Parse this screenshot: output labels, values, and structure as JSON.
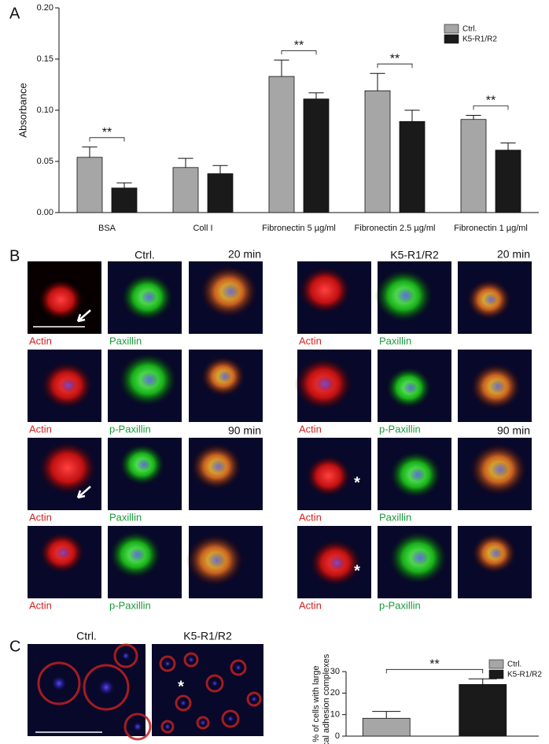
{
  "panel_a": {
    "label": "A"
  },
  "panel_b": {
    "label": "B",
    "groups": [
      {
        "title": "Ctrl.",
        "rows": [
          {
            "labels": [
              "Actin",
              "Paxillin"
            ],
            "time": "20 min"
          },
          {
            "labels": [
              "Actin",
              "p-Paxillin"
            ]
          },
          {
            "labels": [
              "Actin",
              "Paxillin"
            ],
            "time": "90 min"
          },
          {
            "labels": [
              "Actin",
              "p-Paxillin"
            ]
          }
        ]
      },
      {
        "title": "K5-R1/R2",
        "rows": [
          {
            "labels": [
              "Actin",
              "Paxillin"
            ],
            "time": "20 min"
          },
          {
            "labels": [
              "Actin",
              "p-Paxillin"
            ]
          },
          {
            "labels": [
              "Actin",
              "Paxillin"
            ],
            "time": "90 min",
            "mark": "*"
          },
          {
            "labels": [
              "Actin",
              "p-Paxillin"
            ],
            "mark": "*"
          }
        ]
      }
    ]
  },
  "panel_c": {
    "label": "C",
    "images": [
      {
        "title": "Ctrl."
      },
      {
        "title": "K5-R1/R2",
        "mark": "*"
      }
    ]
  },
  "chart_data": [
    {
      "type": "bar",
      "y_label": "Absorbance",
      "categories": [
        "BSA",
        "Coll I",
        "Fibronectin 5 µg/ml",
        "Fibronectin 2.5 µg/ml",
        "Fibronectin 1 µg/ml"
      ],
      "series": [
        {
          "name": "Ctrl.",
          "color": "#a6a6a6",
          "values": [
            0.054,
            0.044,
            0.133,
            0.119,
            0.091
          ],
          "errors": [
            0.01,
            0.009,
            0.016,
            0.017,
            0.004
          ]
        },
        {
          "name": "K5-R1/R2",
          "color": "#1a1a1a",
          "values": [
            0.024,
            0.038,
            0.111,
            0.089,
            0.061
          ],
          "errors": [
            0.005,
            0.008,
            0.006,
            0.011,
            0.007
          ]
        }
      ],
      "significance": [
        "**",
        null,
        "**",
        "**",
        "**"
      ],
      "ylim": [
        0,
        0.2
      ],
      "yticks": [
        {
          "value": 0,
          "label": "0.00"
        },
        {
          "value": 0.05,
          "label": "0.05"
        },
        {
          "value": 0.1,
          "label": "0.10"
        },
        {
          "value": 0.15,
          "label": "0.15"
        },
        {
          "value": 0.2,
          "label": "0.20"
        }
      ],
      "legend": "top-right"
    },
    {
      "type": "bar",
      "y_label": [
        "% of cells with large",
        "focal adhesion complexes"
      ],
      "series": [
        {
          "name": "Ctrl.",
          "color": "#a6a6a6",
          "values": [
            8.3
          ],
          "errors": [
            3.2
          ]
        },
        {
          "name": "K5-R1/R2",
          "color": "#1a1a1a",
          "values": [
            24
          ],
          "errors": [
            2.6
          ]
        }
      ],
      "significance": "**",
      "ylim": [
        0,
        30
      ],
      "yticks": [
        0,
        10,
        20,
        30
      ],
      "legend": "top-right"
    }
  ]
}
